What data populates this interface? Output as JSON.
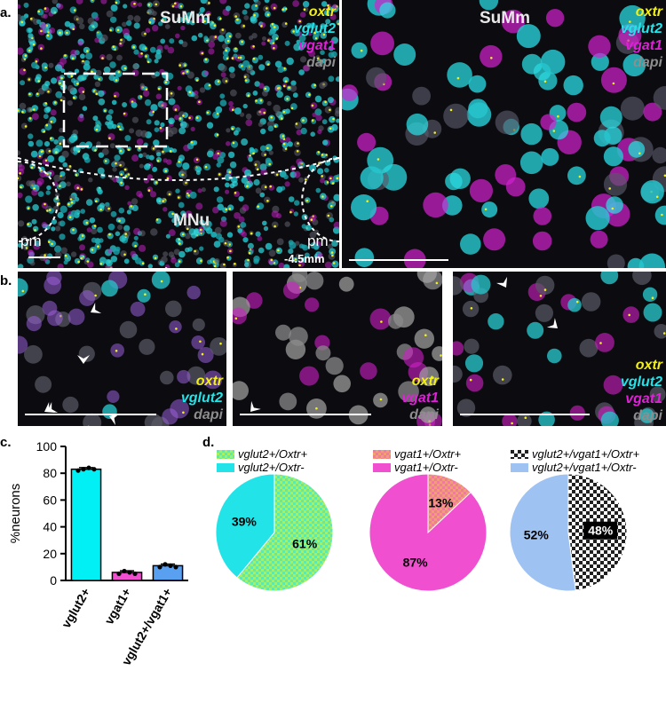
{
  "panels": {
    "a": {
      "letter": "a.",
      "left": {
        "region_top": "SuMm",
        "region_bottom": "MNu",
        "pm_left": "pm",
        "pm_right": "pm",
        "bregma": "-4.5mm",
        "channels": [
          "oxtr",
          "vglut2",
          "vgat1",
          "dapi"
        ]
      },
      "right": {
        "region": "SuMm",
        "channels": [
          "oxtr",
          "vglut2",
          "vgat1",
          "dapi"
        ]
      }
    },
    "b": {
      "letter": "b.",
      "p1_channels": [
        "oxtr",
        "vglut2",
        "dapi"
      ],
      "p2_channels": [
        "oxtr",
        "vgat1",
        "dapi"
      ],
      "p3_channels": [
        "oxtr",
        "vglut2",
        "vgat1",
        "dapi"
      ]
    },
    "c": {
      "letter": "c."
    },
    "d": {
      "letter": "d.",
      "legends": [
        [
          "vglut2+/Oxtr+",
          "vglut2+/Oxtr-"
        ],
        [
          "vgat1+/Oxtr+",
          "vgat1+/Oxtr-"
        ],
        [
          "vglut2+/vgat1+/Oxtr+",
          "vglut2+/vgat1+/Oxtr-"
        ]
      ]
    }
  },
  "colors": {
    "oxtr": "#f2ef1a",
    "vglut2": "#22e3e8",
    "vgat1": "#e020d8",
    "dapi": "#8e8e8e",
    "bar_vglut2": "#00f0f5",
    "bar_vgat1": "#f050d0",
    "bar_both": "#5aa0f0",
    "pie_vglut2_pos": "#a8f060",
    "pie_vglut2_neg": "#22e3e8",
    "pie_vgat1_pos": "#f0a070",
    "pie_vgat1_neg": "#f050d0",
    "pie_both_pos": "#202020",
    "pie_both_neg": "#9ec2f2"
  },
  "chart_data": [
    {
      "type": "bar",
      "title": "",
      "ylabel": "%neurons",
      "xlabel": "",
      "categories": [
        "vglut2+",
        "vgat1+",
        "vglut2+/vgat1+"
      ],
      "values": [
        83,
        6,
        11
      ],
      "points": [
        [
          82,
          83,
          84,
          83
        ],
        [
          5,
          7,
          6,
          5
        ],
        [
          10,
          12,
          11,
          10
        ]
      ],
      "ylim": [
        0,
        100
      ],
      "yticks": [
        0,
        20,
        40,
        60,
        80,
        100
      ]
    },
    {
      "type": "pie",
      "labels": [
        "vglut2+/Oxtr+",
        "vglut2+/Oxtr-"
      ],
      "values": [
        61,
        39
      ],
      "value_labels": [
        "61%",
        "39%"
      ]
    },
    {
      "type": "pie",
      "labels": [
        "vgat1+/Oxtr+",
        "vgat1+/Oxtr-"
      ],
      "values": [
        13,
        87
      ],
      "value_labels": [
        "13%",
        "87%"
      ]
    },
    {
      "type": "pie",
      "labels": [
        "vglut2+/vgat1+/Oxtr+",
        "vglut2+/vgat1+/Oxtr-"
      ],
      "values": [
        48,
        52
      ],
      "value_labels": [
        "48%",
        "52%"
      ]
    }
  ]
}
